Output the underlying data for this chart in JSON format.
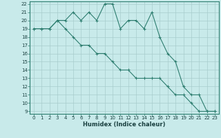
{
  "xlabel": "Humidex (Indice chaleur)",
  "line1_x": [
    0,
    1,
    2,
    3,
    4,
    5,
    6,
    7,
    8,
    9,
    10,
    11,
    12,
    13,
    14,
    15,
    16,
    17,
    18,
    19,
    20,
    21,
    22,
    23
  ],
  "line1_y": [
    19,
    19,
    19,
    20,
    20,
    21,
    20,
    21,
    20,
    22,
    22,
    19,
    20,
    20,
    19,
    21,
    18,
    16,
    15,
    12,
    11,
    11,
    9,
    9
  ],
  "line2_x": [
    0,
    1,
    2,
    3,
    4,
    5,
    6,
    7,
    8,
    9,
    10,
    11,
    12,
    13,
    14,
    15,
    16,
    17,
    18,
    19,
    20,
    21,
    22,
    23
  ],
  "line2_y": [
    19,
    19,
    19,
    20,
    19,
    18,
    17,
    17,
    16,
    16,
    15,
    14,
    14,
    13,
    13,
    13,
    13,
    12,
    11,
    11,
    10,
    9,
    9,
    9
  ],
  "line_color": "#2d7d6f",
  "bg_color": "#c8eaea",
  "grid_color": "#a8cccc",
  "ylim": [
    9,
    22
  ],
  "xlim": [
    0,
    23
  ],
  "yticks": [
    9,
    10,
    11,
    12,
    13,
    14,
    15,
    16,
    17,
    18,
    19,
    20,
    21,
    22
  ],
  "xticks": [
    0,
    1,
    2,
    3,
    4,
    5,
    6,
    7,
    8,
    9,
    10,
    11,
    12,
    13,
    14,
    15,
    16,
    17,
    18,
    19,
    20,
    21,
    22,
    23
  ],
  "tick_fontsize": 5.0,
  "xlabel_fontsize": 6.0
}
